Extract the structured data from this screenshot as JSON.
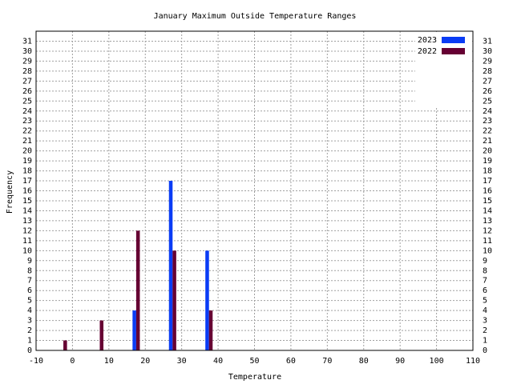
{
  "chart_data": {
    "type": "bar",
    "title": "January Maximum Outside Temperature Ranges",
    "x_label": "Temperature",
    "y_label": "Frequency",
    "series": [
      {
        "name": "2023",
        "color": "#0a3cf5",
        "x": [
          17,
          27,
          37
        ],
        "values": [
          4,
          17,
          10
        ]
      },
      {
        "name": "2022",
        "color": "#660033",
        "x": [
          -2,
          8,
          18,
          28,
          38
        ],
        "values": [
          1,
          3,
          12,
          10,
          4
        ]
      }
    ],
    "xlim": [
      -10,
      110
    ],
    "xticks": [
      -10,
      0,
      10,
      20,
      30,
      40,
      50,
      60,
      70,
      80,
      90,
      100,
      110
    ],
    "ylim": [
      0,
      32
    ],
    "yticks": [
      0,
      1,
      2,
      3,
      4,
      5,
      6,
      7,
      8,
      9,
      10,
      11,
      12,
      13,
      14,
      15,
      16,
      17,
      18,
      19,
      20,
      21,
      22,
      23,
      24,
      25,
      26,
      27,
      28,
      29,
      30,
      31
    ],
    "grid": true,
    "legend": "top-right"
  }
}
